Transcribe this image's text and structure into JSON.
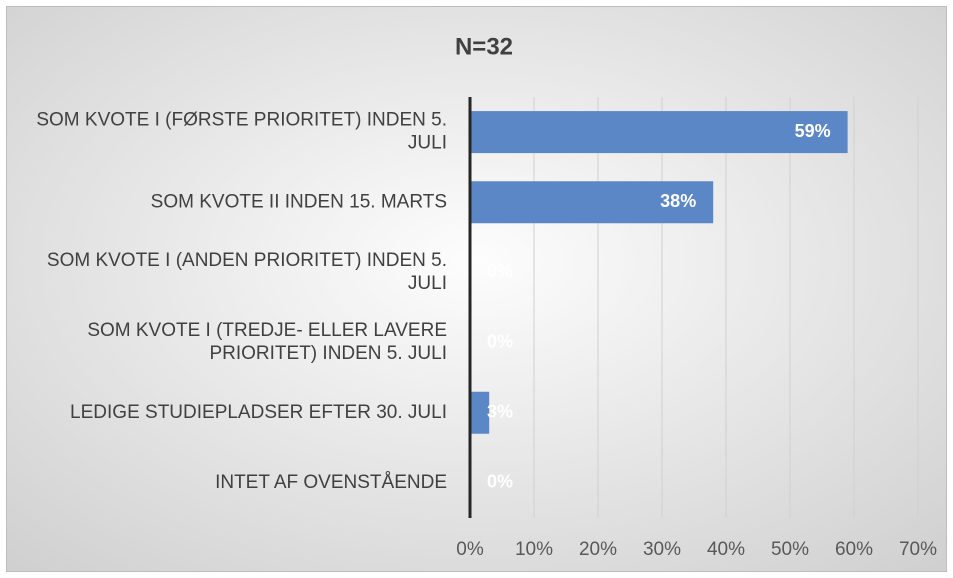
{
  "chart_data": {
    "type": "bar",
    "orientation": "horizontal",
    "title": "N=32",
    "categories": [
      "SOM KVOTE I (FØRSTE PRIORITET) INDEN 5. JULI",
      "SOM KVOTE II INDEN 15. MARTS",
      "SOM KVOTE I (ANDEN PRIORITET) INDEN 5. JULI",
      "SOM KVOTE I (TREDJE- ELLER LAVERE PRIORITET) INDEN 5. JULI",
      "LEDIGE STUDIEPLADSER EFTER 30. JULI",
      "INTET AF OVENSTÅENDE"
    ],
    "values": [
      59,
      38,
      0,
      0,
      3,
      0
    ],
    "value_labels": [
      "59%",
      "38%",
      "0%",
      "0%",
      "3%",
      "0%"
    ],
    "color": "#5b87c6",
    "xlim": [
      0,
      70
    ],
    "xticks": [
      {
        "value": 0,
        "label": "0%"
      },
      {
        "value": 10,
        "label": "10%"
      },
      {
        "value": 20,
        "label": "20%"
      },
      {
        "value": 30,
        "label": "30%"
      },
      {
        "value": 40,
        "label": "40%"
      },
      {
        "value": 50,
        "label": "50%"
      },
      {
        "value": 60,
        "label": "60%"
      },
      {
        "value": 70,
        "label": "70%"
      }
    ],
    "grid": true
  }
}
